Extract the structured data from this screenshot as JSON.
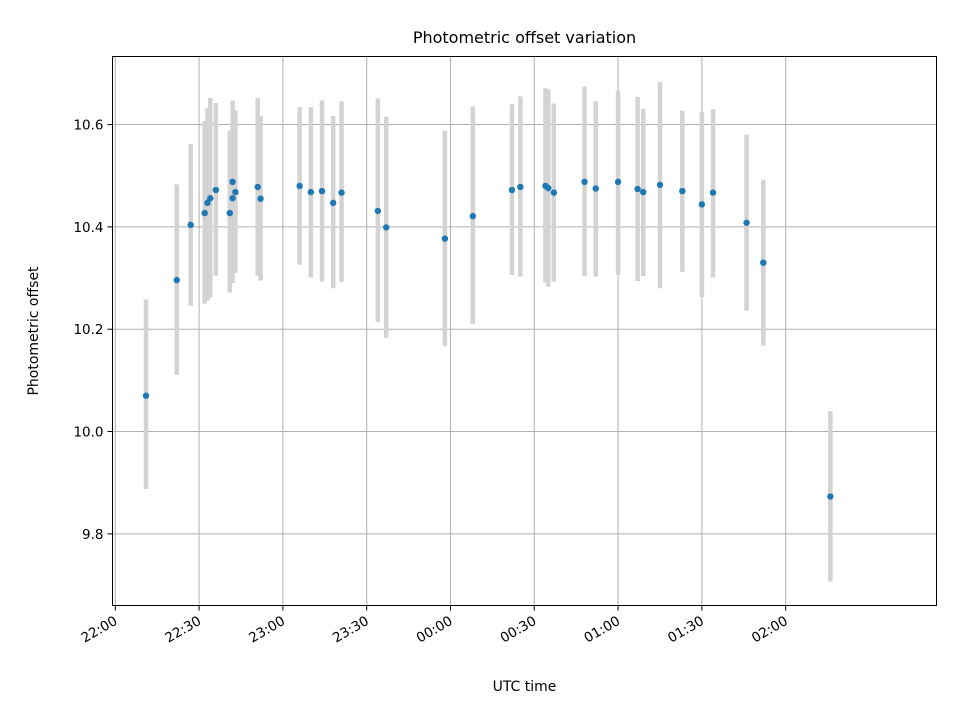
{
  "chart_data": {
    "type": "scatter",
    "title": "Photometric offset variation",
    "xlabel": "UTC time",
    "ylabel": "Photometric offset",
    "x_kind": "time-of-day",
    "xlim": [
      "21:59",
      "02:54"
    ],
    "ylim": [
      9.66,
      10.733
    ],
    "x_ticks": [
      "22:00",
      "22:30",
      "23:00",
      "23:30",
      "00:00",
      "00:30",
      "01:00",
      "01:30",
      "02:00"
    ],
    "y_ticks": [
      9.8,
      10.0,
      10.2,
      10.4,
      10.6
    ],
    "y_tick_labels": [
      "9.8",
      "10.0",
      "10.2",
      "10.4",
      "10.6"
    ],
    "grid": true,
    "marker_color": "#1f77b4",
    "errorbar_color": "#d3d3d3",
    "series": [
      {
        "points": [
          {
            "t": "22:11",
            "y": 10.07,
            "lo": 9.888,
            "hi": 10.258
          },
          {
            "t": "22:22",
            "y": 10.296,
            "lo": 10.111,
            "hi": 10.483
          },
          {
            "t": "22:27",
            "y": 10.404,
            "lo": 10.246,
            "hi": 10.562
          },
          {
            "t": "22:32",
            "y": 10.427,
            "lo": 10.25,
            "hi": 10.607
          },
          {
            "t": "22:33",
            "y": 10.447,
            "lo": 10.256,
            "hi": 10.632
          },
          {
            "t": "22:34",
            "y": 10.456,
            "lo": 10.262,
            "hi": 10.652
          },
          {
            "t": "22:36",
            "y": 10.472,
            "lo": 10.305,
            "hi": 10.642
          },
          {
            "t": "22:41",
            "y": 10.427,
            "lo": 10.272,
            "hi": 10.588
          },
          {
            "t": "22:42",
            "y": 10.456,
            "lo": 10.29,
            "hi": 10.597
          },
          {
            "t": "22:42",
            "y": 10.488,
            "lo": 10.31,
            "hi": 10.647
          },
          {
            "t": "22:43",
            "y": 10.468,
            "lo": 10.31,
            "hi": 10.628
          },
          {
            "t": "22:51",
            "y": 10.478,
            "lo": 10.305,
            "hi": 10.652
          },
          {
            "t": "22:52",
            "y": 10.455,
            "lo": 10.295,
            "hi": 10.617
          },
          {
            "t": "23:06",
            "y": 10.48,
            "lo": 10.326,
            "hi": 10.634
          },
          {
            "t": "23:10",
            "y": 10.468,
            "lo": 10.301,
            "hi": 10.634
          },
          {
            "t": "23:14",
            "y": 10.47,
            "lo": 10.293,
            "hi": 10.647
          },
          {
            "t": "23:18",
            "y": 10.447,
            "lo": 10.28,
            "hi": 10.617
          },
          {
            "t": "23:21",
            "y": 10.467,
            "lo": 10.292,
            "hi": 10.645
          },
          {
            "t": "23:34",
            "y": 10.431,
            "lo": 10.214,
            "hi": 10.651
          },
          {
            "t": "23:37",
            "y": 10.399,
            "lo": 10.183,
            "hi": 10.615
          },
          {
            "t": "23:58",
            "y": 10.377,
            "lo": 10.167,
            "hi": 10.588
          },
          {
            "t": "00:08",
            "y": 10.421,
            "lo": 10.21,
            "hi": 10.635
          },
          {
            "t": "00:22",
            "y": 10.472,
            "lo": 10.306,
            "hi": 10.64
          },
          {
            "t": "00:25",
            "y": 10.478,
            "lo": 10.303,
            "hi": 10.655
          },
          {
            "t": "00:34",
            "y": 10.48,
            "lo": 10.291,
            "hi": 10.671
          },
          {
            "t": "00:35",
            "y": 10.476,
            "lo": 10.283,
            "hi": 10.669
          },
          {
            "t": "00:37",
            "y": 10.467,
            "lo": 10.293,
            "hi": 10.641
          },
          {
            "t": "00:48",
            "y": 10.488,
            "lo": 10.304,
            "hi": 10.674
          },
          {
            "t": "00:52",
            "y": 10.475,
            "lo": 10.303,
            "hi": 10.645
          },
          {
            "t": "01:00",
            "y": 10.488,
            "lo": 10.306,
            "hi": 10.666
          },
          {
            "t": "01:07",
            "y": 10.474,
            "lo": 10.294,
            "hi": 10.654
          },
          {
            "t": "01:09",
            "y": 10.468,
            "lo": 10.304,
            "hi": 10.631
          },
          {
            "t": "01:15",
            "y": 10.482,
            "lo": 10.28,
            "hi": 10.683
          },
          {
            "t": "01:23",
            "y": 10.47,
            "lo": 10.312,
            "hi": 10.627
          },
          {
            "t": "01:30",
            "y": 10.444,
            "lo": 10.263,
            "hi": 10.624
          },
          {
            "t": "01:34",
            "y": 10.467,
            "lo": 10.301,
            "hi": 10.63
          },
          {
            "t": "01:46",
            "y": 10.408,
            "lo": 10.236,
            "hi": 10.58
          },
          {
            "t": "01:52",
            "y": 10.33,
            "lo": 10.168,
            "hi": 10.492
          },
          {
            "t": "02:16",
            "y": 9.873,
            "lo": 9.707,
            "hi": 10.04
          }
        ]
      }
    ]
  }
}
